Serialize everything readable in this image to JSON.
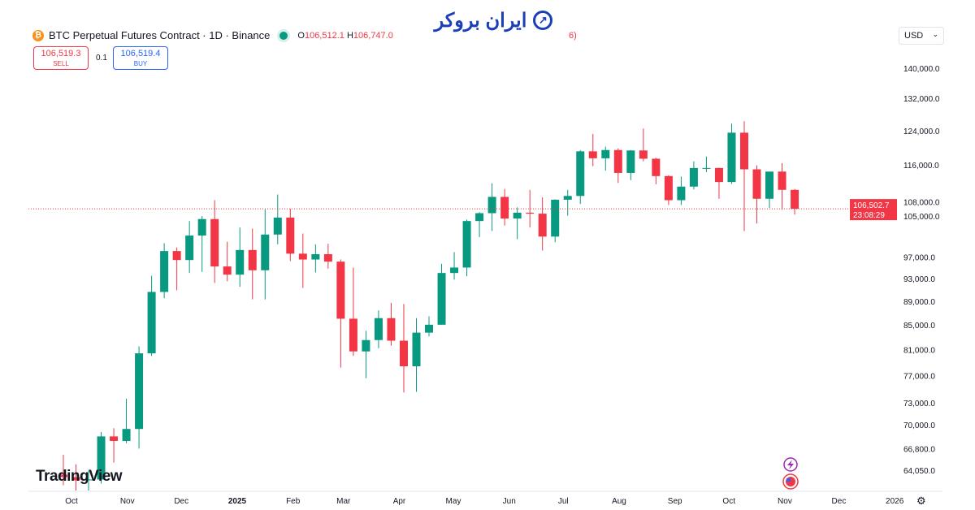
{
  "header": {
    "symbol": "BTC Perpetual Futures Contract · 1D · Binance",
    "open_label": "O",
    "open": "106,512.1",
    "high_label": "H",
    "high": "106,747.0",
    "tail": "6)"
  },
  "trade": {
    "sell_price": "106,519.3",
    "sell_label": "SELL",
    "spread": "0.1",
    "buy_price": "106,519.4",
    "buy_label": "BUY"
  },
  "currency": "USD",
  "logo": "ایران بروکر",
  "watermark": "TradingView",
  "price_label": {
    "price": "106,502.7",
    "countdown": "23:08:29"
  },
  "colors": {
    "up": "#089981",
    "down": "#f23645",
    "price_line": "#f23645"
  },
  "icons": [
    "bitcoin-icon",
    "market-status-dot-icon",
    "chevron-down-icon",
    "lightning-event-icon",
    "us-flag-event-icon",
    "settings-icon"
  ],
  "chart_data": {
    "type": "candlestick",
    "scale": "log",
    "interval": "1D",
    "ylim": [
      62500,
      144000
    ],
    "yticks": [
      "140,000.0",
      "132,000.0",
      "124,000.0",
      "116,000.0",
      "108,000.0",
      "105,000.0",
      "97,000.0",
      "93,000.0",
      "89,000.0",
      "85,000.0",
      "81,000.0",
      "77,000.0",
      "73,000.0",
      "70,000.0",
      "66,800.0",
      "64,050.0"
    ],
    "xticks": [
      "Oct",
      "Nov",
      "Dec",
      "2025",
      "Feb",
      "Mar",
      "Apr",
      "May",
      "Jun",
      "Jul",
      "Aug",
      "Sep",
      "Oct",
      "Nov",
      "Dec",
      "2026"
    ],
    "last_price": 106502.7,
    "candles": [
      [
        "2024-09-23",
        63500,
        66000,
        62200,
        63200
      ],
      [
        "2024-09-30",
        63200,
        64800,
        59900,
        62800
      ],
      [
        "2024-10-07",
        62800,
        64000,
        58900,
        62900
      ],
      [
        "2024-10-14",
        62900,
        69000,
        62400,
        68400
      ],
      [
        "2024-10-21",
        68400,
        69500,
        65000,
        67800
      ],
      [
        "2024-10-28",
        67800,
        73600,
        67500,
        69400
      ],
      [
        "2024-11-04",
        69400,
        81500,
        66800,
        80400
      ],
      [
        "2024-11-11",
        80400,
        93500,
        80000,
        90600
      ],
      [
        "2024-11-18",
        90600,
        99600,
        89500,
        98100
      ],
      [
        "2024-11-25",
        98100,
        98800,
        90900,
        96400
      ],
      [
        "2024-12-02",
        96400,
        104000,
        94000,
        101100
      ],
      [
        "2024-12-09",
        101100,
        105000,
        94200,
        104400
      ],
      [
        "2024-12-16",
        104400,
        108300,
        92200,
        95200
      ],
      [
        "2024-12-23",
        95200,
        99900,
        92500,
        93700
      ],
      [
        "2024-12-30",
        93700,
        102700,
        91500,
        98300
      ],
      [
        "2025-01-06",
        98300,
        102500,
        89300,
        94500
      ],
      [
        "2025-01-13",
        94500,
        106400,
        89300,
        101300
      ],
      [
        "2025-01-20",
        101300,
        109500,
        99400,
        104700
      ],
      [
        "2025-01-27",
        104700,
        106500,
        96200,
        97600
      ],
      [
        "2025-02-03",
        97600,
        101500,
        91300,
        96500
      ],
      [
        "2025-02-10",
        96500,
        99400,
        94100,
        97500
      ],
      [
        "2025-02-17",
        97500,
        99500,
        94800,
        96100
      ],
      [
        "2025-02-24",
        96100,
        96500,
        78200,
        86000
      ],
      [
        "2025-03-03",
        86000,
        95000,
        80000,
        80700
      ],
      [
        "2025-03-10",
        80700,
        84000,
        76600,
        82500
      ],
      [
        "2025-03-17",
        82500,
        87400,
        81200,
        86100
      ],
      [
        "2025-03-24",
        86100,
        88700,
        81600,
        82400
      ],
      [
        "2025-03-31",
        82400,
        88500,
        74500,
        78400
      ],
      [
        "2025-04-07",
        78400,
        86100,
        74600,
        83700
      ],
      [
        "2025-04-14",
        83700,
        86400,
        83100,
        85000
      ],
      [
        "2025-04-21",
        85000,
        95700,
        85000,
        94000
      ],
      [
        "2025-04-28",
        94000,
        97900,
        92800,
        95000
      ],
      [
        "2025-05-05",
        95000,
        104300,
        93400,
        104000
      ],
      [
        "2025-05-12",
        104000,
        105800,
        100800,
        105600
      ],
      [
        "2025-05-19",
        105600,
        111900,
        102000,
        109000
      ],
      [
        "2025-05-26",
        109000,
        110700,
        103100,
        104500
      ],
      [
        "2025-06-02",
        104500,
        106800,
        100400,
        105700
      ],
      [
        "2025-06-09",
        105700,
        110500,
        102700,
        105500
      ],
      [
        "2025-06-16",
        105500,
        108900,
        98200,
        100900
      ],
      [
        "2025-06-23",
        100900,
        108500,
        99800,
        108400
      ],
      [
        "2025-06-30",
        108400,
        110500,
        105100,
        109200
      ],
      [
        "2025-07-07",
        109200,
        119400,
        107500,
        119100
      ],
      [
        "2025-07-14",
        119100,
        123200,
        115700,
        117500
      ],
      [
        "2025-07-21",
        117500,
        120200,
        114700,
        119400
      ],
      [
        "2025-07-28",
        119400,
        119800,
        112000,
        114200
      ],
      [
        "2025-08-04",
        114200,
        119400,
        112600,
        119300
      ],
      [
        "2025-08-11",
        119300,
        124500,
        116800,
        117400
      ],
      [
        "2025-08-18",
        117400,
        117600,
        111700,
        113500
      ],
      [
        "2025-08-25",
        113500,
        113700,
        107300,
        108300
      ],
      [
        "2025-09-01",
        108300,
        113400,
        107300,
        111200
      ],
      [
        "2025-09-08",
        111200,
        116800,
        110600,
        115300
      ],
      [
        "2025-09-15",
        115300,
        117900,
        114400,
        115300
      ],
      [
        "2025-09-22",
        115300,
        115400,
        108600,
        112200
      ],
      [
        "2025-09-29",
        112200,
        125700,
        111800,
        123500
      ],
      [
        "2025-10-06",
        123500,
        126300,
        102000,
        115000
      ],
      [
        "2025-10-13",
        115000,
        115900,
        103500,
        108600
      ],
      [
        "2025-10-20",
        108600,
        114000,
        106700,
        114500
      ],
      [
        "2025-10-27",
        114500,
        116400,
        106300,
        110500
      ],
      [
        "2025-11-03",
        110500,
        110700,
        105300,
        106500
      ]
    ]
  }
}
